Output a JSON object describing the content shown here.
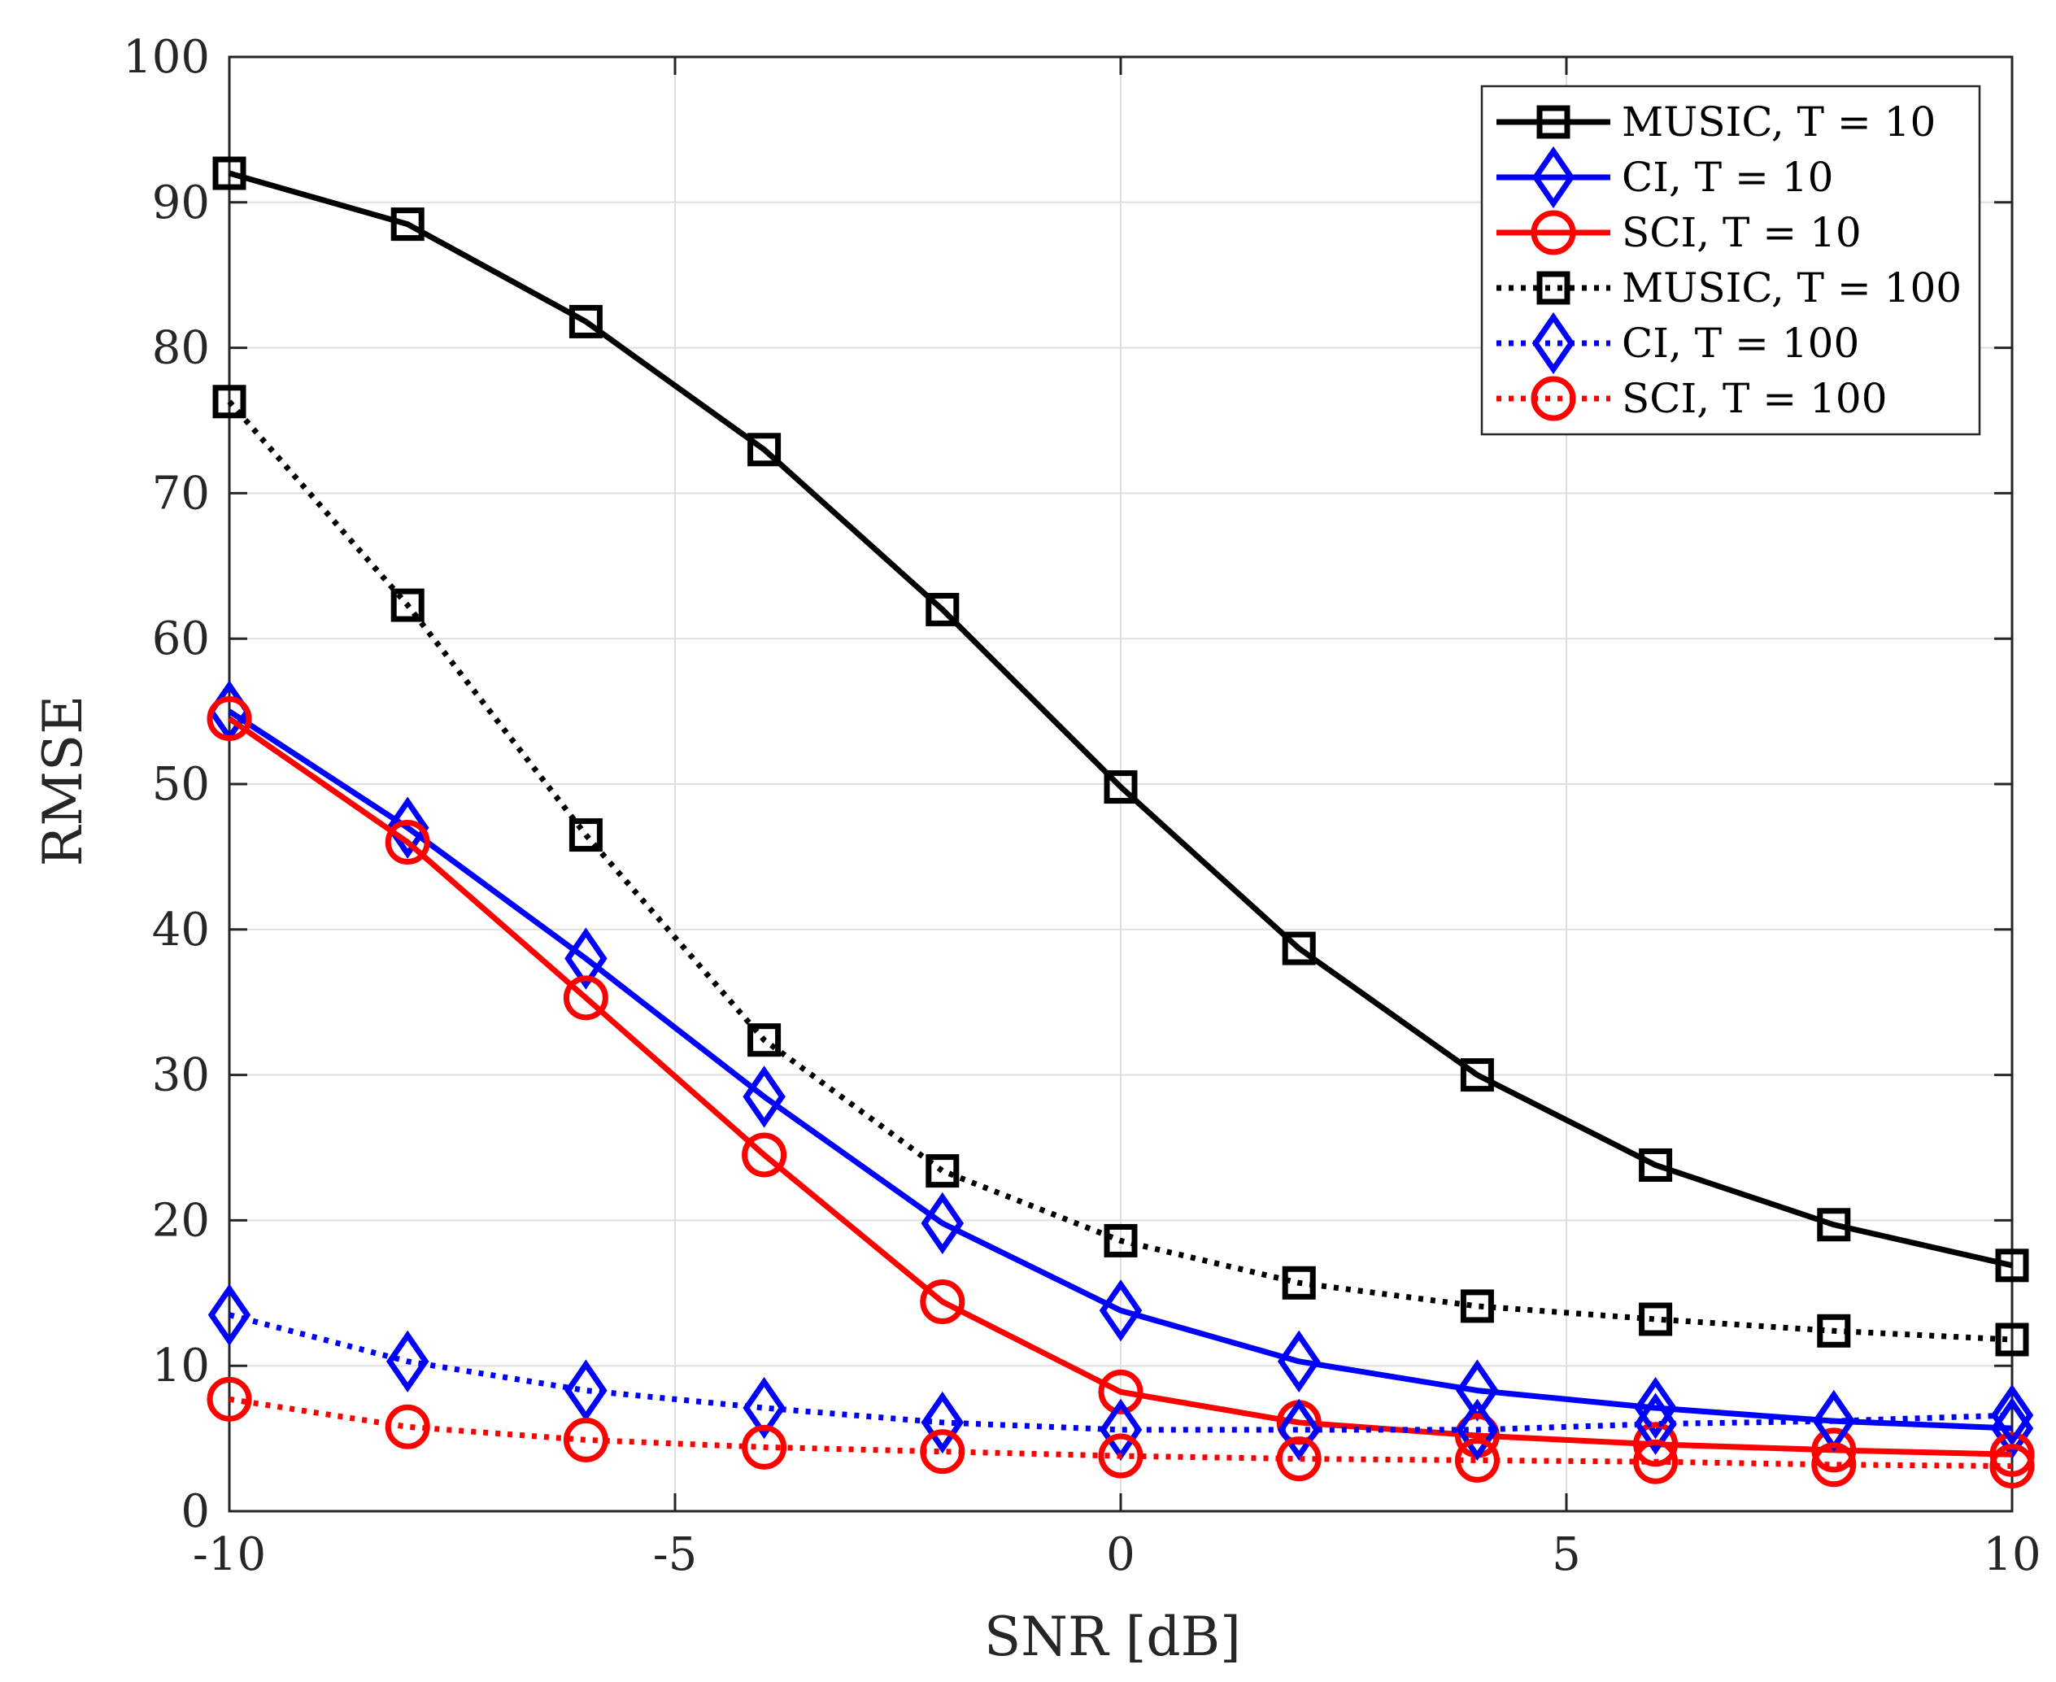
{
  "chart_data": {
    "type": "line",
    "title": "",
    "xlabel": "SNR [dB]",
    "ylabel": "RMSE",
    "xlim": [
      -10,
      10
    ],
    "ylim": [
      0,
      100
    ],
    "xticks": [
      -10,
      -5,
      0,
      5,
      10
    ],
    "yticks": [
      0,
      10,
      20,
      30,
      40,
      50,
      60,
      70,
      80,
      90,
      100
    ],
    "grid": true,
    "legend_location": "top-right",
    "x": [
      -10,
      -8,
      -6,
      -4,
      -2,
      0,
      2,
      4,
      6,
      8,
      10
    ],
    "series": [
      {
        "name": "MUSIC, T = 10",
        "color": "#000000",
        "linestyle": "solid",
        "marker": "square",
        "values": [
          92.0,
          88.5,
          81.8,
          73.0,
          62.0,
          49.8,
          38.7,
          30.0,
          23.8,
          19.7,
          16.9
        ]
      },
      {
        "name": "CI, T = 10",
        "color": "#0000ff",
        "linestyle": "solid",
        "marker": "diamond",
        "values": [
          55.0,
          47.0,
          38.0,
          28.5,
          19.8,
          13.8,
          10.3,
          8.3,
          7.1,
          6.2,
          5.7
        ]
      },
      {
        "name": "SCI, T = 10",
        "color": "#ff0000",
        "linestyle": "solid",
        "marker": "circle",
        "values": [
          54.5,
          46.0,
          35.3,
          24.5,
          14.4,
          8.2,
          6.1,
          5.2,
          4.6,
          4.2,
          3.9
        ]
      },
      {
        "name": "MUSIC, T = 100",
        "color": "#000000",
        "linestyle": "dotted",
        "marker": "square",
        "values": [
          76.3,
          62.3,
          46.5,
          32.4,
          23.4,
          18.6,
          15.7,
          14.1,
          13.2,
          12.4,
          11.8
        ]
      },
      {
        "name": "CI, T = 100",
        "color": "#0000ff",
        "linestyle": "dotted",
        "marker": "diamond",
        "values": [
          13.5,
          10.3,
          8.3,
          7.1,
          6.1,
          5.6,
          5.6,
          5.6,
          6.0,
          6.2,
          6.6
        ]
      },
      {
        "name": "SCI, T = 100",
        "color": "#ff0000",
        "linestyle": "dotted",
        "marker": "circle",
        "values": [
          7.7,
          5.8,
          4.9,
          4.4,
          4.1,
          3.8,
          3.6,
          3.5,
          3.4,
          3.2,
          3.1
        ]
      }
    ]
  }
}
